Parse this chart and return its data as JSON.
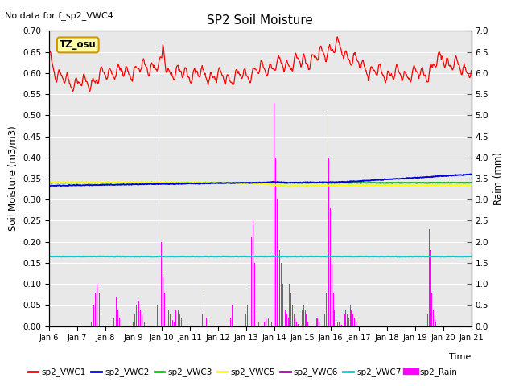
{
  "title": "SP2 Soil Moisture",
  "no_data_text": "No data for f_sp2_VWC4",
  "xlabel": "Time",
  "ylabel_left": "Soil Moisture (m3/m3)",
  "ylabel_right": "Raim (mm)",
  "ylim_left": [
    0.0,
    0.7
  ],
  "ylim_right": [
    0.0,
    7.0
  ],
  "yticks_left": [
    0.0,
    0.05,
    0.1,
    0.15,
    0.2,
    0.25,
    0.3,
    0.35,
    0.4,
    0.45,
    0.5,
    0.55,
    0.6,
    0.65,
    0.7
  ],
  "yticks_right": [
    0.0,
    0.5,
    1.0,
    1.5,
    2.0,
    2.5,
    3.0,
    3.5,
    4.0,
    4.5,
    5.0,
    5.5,
    6.0,
    6.5,
    7.0
  ],
  "tz_label": "TZ_osu",
  "bg_color": "#e8e8e8",
  "colors": {
    "sp2_VWC1": "#ff0000",
    "sp2_VWC2": "#0000dd",
    "sp2_VWC3": "#00cc00",
    "sp2_VWC5": "#ffff00",
    "sp2_VWC6": "#aa00aa",
    "sp2_VWC7": "#00cccc",
    "sp2_Rain": "#ff00ff"
  },
  "xstart": 6,
  "xend": 21,
  "xtick_labels": [
    "Jan 6",
    "Jan 7",
    "Jan 8",
    "Jan 9",
    "Jan 10",
    "Jan 11",
    "Jan 12",
    "Jan 13",
    "Jan 14",
    "Jan 15",
    "Jan 16",
    "Jan 17",
    "Jan 18",
    "Jan 19",
    "Jan 20",
    "Jan 21"
  ],
  "xtick_positions": [
    6,
    7,
    8,
    9,
    10,
    11,
    12,
    13,
    14,
    15,
    16,
    17,
    18,
    19,
    20,
    21
  ],
  "rain_times": [
    7.5,
    7.55,
    7.6,
    7.65,
    7.7,
    7.75,
    7.8,
    7.85,
    8.3,
    8.35,
    8.4,
    8.45,
    8.5,
    9.0,
    9.05,
    9.1,
    9.15,
    9.2,
    9.25,
    9.3,
    9.35,
    9.4,
    9.45,
    9.85,
    9.9,
    9.95,
    10.0,
    10.05,
    10.1,
    10.15,
    10.2,
    10.25,
    10.3,
    10.35,
    10.4,
    10.45,
    10.5,
    10.55,
    10.6,
    10.65,
    10.7,
    11.45,
    11.5,
    11.55,
    11.6,
    12.45,
    12.5,
    12.55,
    13.0,
    13.05,
    13.1,
    13.15,
    13.2,
    13.25,
    13.3,
    13.35,
    13.4,
    13.45,
    13.65,
    13.7,
    13.75,
    13.8,
    13.85,
    13.9,
    13.95,
    14.0,
    14.05,
    14.1,
    14.15,
    14.2,
    14.25,
    14.3,
    14.35,
    14.4,
    14.45,
    14.5,
    14.55,
    14.6,
    14.65,
    14.7,
    14.75,
    14.8,
    14.85,
    14.9,
    14.95,
    15.0,
    15.05,
    15.1,
    15.15,
    15.2,
    15.45,
    15.5,
    15.55,
    15.6,
    15.8,
    15.85,
    15.9,
    15.95,
    16.0,
    16.05,
    16.1,
    16.15,
    16.2,
    16.25,
    16.3,
    16.35,
    16.4,
    16.45,
    16.5,
    16.55,
    16.6,
    16.65,
    16.7,
    16.75,
    16.8,
    16.85,
    16.9,
    19.4,
    19.45,
    19.5,
    19.55,
    19.6,
    19.65,
    19.7,
    19.75
  ],
  "rain_values": [
    0.1,
    0.2,
    0.5,
    0.8,
    1.0,
    1.3,
    0.8,
    0.3,
    0.2,
    0.5,
    0.7,
    0.4,
    0.2,
    0.1,
    0.3,
    0.5,
    0.7,
    0.6,
    0.4,
    0.3,
    0.2,
    0.1,
    0.05,
    0.5,
    6.6,
    4.0,
    2.0,
    1.2,
    0.8,
    0.6,
    0.5,
    0.4,
    0.3,
    0.2,
    0.15,
    0.1,
    0.4,
    0.5,
    0.4,
    0.3,
    0.2,
    0.3,
    0.8,
    0.5,
    0.2,
    0.2,
    0.5,
    0.3,
    0.3,
    0.5,
    1.0,
    1.5,
    2.1,
    2.5,
    1.5,
    0.8,
    0.3,
    0.1,
    0.1,
    0.2,
    0.3,
    0.2,
    0.15,
    0.1,
    0.05,
    5.3,
    4.0,
    3.0,
    2.4,
    1.8,
    1.5,
    1.0,
    0.6,
    0.4,
    0.3,
    0.2,
    1.0,
    0.8,
    0.5,
    0.3,
    0.2,
    0.1,
    0.05,
    0.02,
    0.01,
    0.4,
    0.5,
    0.4,
    0.3,
    0.1,
    0.1,
    0.2,
    0.2,
    0.1,
    0.3,
    0.8,
    5.0,
    4.0,
    2.8,
    1.5,
    0.8,
    0.4,
    0.2,
    0.1,
    0.08,
    0.05,
    0.03,
    0.02,
    0.3,
    0.4,
    0.3,
    0.2,
    0.5,
    0.4,
    0.3,
    0.2,
    0.1,
    0.1,
    0.3,
    2.3,
    1.8,
    0.8,
    0.4,
    0.2,
    0.1
  ]
}
